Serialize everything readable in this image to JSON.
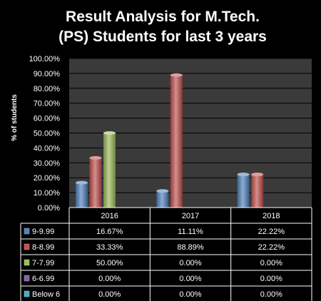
{
  "chart_data": {
    "type": "bar",
    "title_lines": [
      "Result Analysis for M.Tech.",
      "(PS) Students for last 3 years"
    ],
    "ylabel": "% of students",
    "xlabel": "",
    "categories": [
      "2016",
      "2017",
      "2018"
    ],
    "ylim": [
      0,
      100
    ],
    "yticks": [
      "0.00%",
      "10.00%",
      "20.00%",
      "30.00%",
      "40.00%",
      "50.00%",
      "60.00%",
      "70.00%",
      "80.00%",
      "90.00%",
      "100.00%"
    ],
    "grid": true,
    "legend_placement": "data-table-left",
    "series": [
      {
        "name": "9-9.99",
        "values": [
          16.67,
          11.11,
          22.22
        ],
        "labels": [
          "16.67%",
          "11.11%",
          "22.22%"
        ],
        "color": "#4f81bd"
      },
      {
        "name": "8-8.99",
        "values": [
          33.33,
          88.89,
          22.22
        ],
        "labels": [
          "33.33%",
          "88.89%",
          "22.22%"
        ],
        "color": "#c0504d"
      },
      {
        "name": "7-7.99",
        "values": [
          50.0,
          0.0,
          0.0
        ],
        "labels": [
          "50.00%",
          "0.00%",
          "0.00%"
        ],
        "color": "#9bbb59"
      },
      {
        "name": "6-6.99",
        "values": [
          0.0,
          0.0,
          0.0
        ],
        "labels": [
          "0.00%",
          "0.00%",
          "0.00%"
        ],
        "color": "#8064a2"
      },
      {
        "name": "Below 6",
        "values": [
          0.0,
          0.0,
          0.0
        ],
        "labels": [
          "0.00%",
          "0.00%",
          "0.00%"
        ],
        "color": "#4bacc6"
      }
    ],
    "plot_background": "#3a3a3a",
    "gridline_color": "#000000"
  }
}
